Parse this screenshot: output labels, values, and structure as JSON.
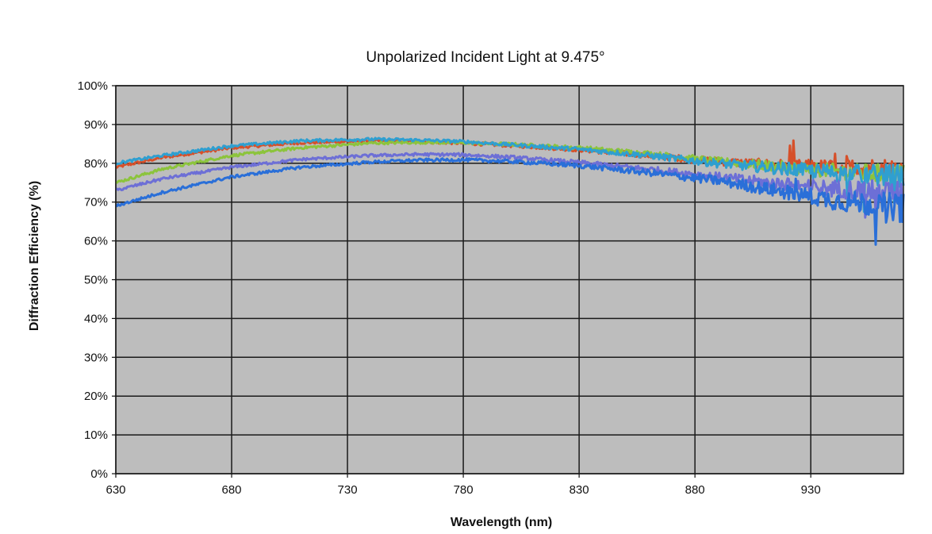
{
  "chart_data": {
    "type": "line",
    "title": "Unpolarized Incident Light at 9.475°",
    "xlabel": "Wavelength (nm)",
    "ylabel": "Diffraction Efficiency (%)",
    "xlim": [
      630,
      970
    ],
    "ylim": [
      0,
      100
    ],
    "x_ticks": [
      630,
      680,
      730,
      780,
      830,
      880,
      930
    ],
    "y_ticks": [
      0,
      10,
      20,
      30,
      40,
      50,
      60,
      70,
      80,
      90,
      100
    ],
    "y_tick_format": "%",
    "grid": true,
    "plot_background": "#bdbdbd",
    "grid_color": "#1a1a1a",
    "legend": "none",
    "series": [
      {
        "color": "#d6502a",
        "x": [
          630,
          650,
          680,
          710,
          740,
          760,
          780,
          800,
          830,
          860,
          890,
          920,
          940,
          955,
          970
        ],
        "y": [
          79,
          81.5,
          84,
          85.3,
          85.8,
          85.6,
          85.2,
          84.6,
          83.5,
          82,
          80.5,
          79.5,
          79,
          79,
          78.5
        ],
        "noise": 2.5
      },
      {
        "color": "#8cc43c",
        "x": [
          630,
          650,
          680,
          710,
          740,
          760,
          780,
          800,
          830,
          860,
          890,
          920,
          940,
          955,
          970
        ],
        "y": [
          75,
          78.5,
          82,
          84,
          85.2,
          85.4,
          85.3,
          84.9,
          84,
          82.5,
          80.5,
          79,
          78,
          77.5,
          77
        ],
        "noise": 2.5
      },
      {
        "color": "#2f9fd0",
        "x": [
          630,
          650,
          680,
          710,
          740,
          760,
          780,
          800,
          830,
          860,
          890,
          920,
          940,
          955,
          970
        ],
        "y": [
          80,
          82,
          84.5,
          85.8,
          86.2,
          86,
          85.6,
          84.8,
          83.6,
          82,
          80,
          78.5,
          77.5,
          77,
          76.5
        ],
        "noise": 3
      },
      {
        "color": "#6d6fd6",
        "x": [
          630,
          650,
          680,
          710,
          740,
          760,
          780,
          800,
          830,
          860,
          890,
          920,
          940,
          955,
          970
        ],
        "y": [
          73,
          76,
          79,
          81,
          82,
          82.3,
          82.2,
          81.6,
          80.2,
          78.5,
          76.5,
          74.5,
          73.5,
          73,
          72
        ],
        "noise": 3
      },
      {
        "color": "#2a6fd8",
        "x": [
          630,
          650,
          680,
          710,
          740,
          760,
          780,
          800,
          830,
          860,
          890,
          920,
          940,
          955,
          970
        ],
        "y": [
          69,
          72.5,
          76.5,
          79,
          80.3,
          80.8,
          80.9,
          80.5,
          79.4,
          77.6,
          75.5,
          72.5,
          70.5,
          69.5,
          68.5
        ],
        "noise": 3.5
      }
    ]
  }
}
